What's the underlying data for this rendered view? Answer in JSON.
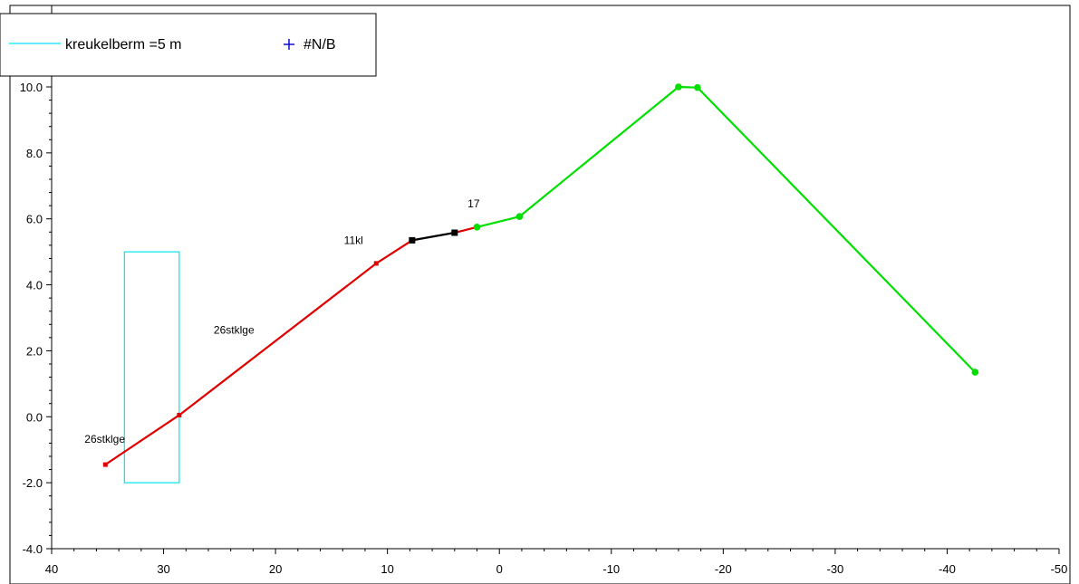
{
  "chart_data": {
    "type": "line",
    "title": "",
    "xlabel": "",
    "ylabel": "",
    "xlim": [
      40,
      -50
    ],
    "ylim": [
      -4,
      11
    ],
    "x_ticks": [
      "40",
      "30",
      "20",
      "10",
      "0",
      "-10",
      "-20",
      "-30",
      "-40",
      "-50"
    ],
    "y_ticks": [
      "-4.0",
      "-2.0",
      "0.0",
      "2.0",
      "4.0",
      "6.0",
      "8.0",
      "10.0"
    ],
    "x_tick_values": [
      40,
      30,
      20,
      10,
      0,
      -10,
      -20,
      -30,
      -40,
      -50
    ],
    "y_tick_values": [
      -4,
      -2,
      0,
      2,
      4,
      6,
      8,
      10
    ],
    "grid": false,
    "legend_position": "top-left",
    "legend": [
      {
        "label": "kreukelberm =5 m",
        "color": "#00e5ee",
        "marker": "line"
      },
      {
        "label": "#N/B",
        "color": "#0000cc",
        "marker": "plus"
      }
    ],
    "series": [
      {
        "color": "#e00000",
        "marker": "square-small",
        "points": [
          [
            35.2,
            -1.45
          ],
          [
            28.6,
            0.05
          ],
          [
            11.0,
            4.65
          ],
          [
            7.8,
            5.35
          ]
        ]
      },
      {
        "color": "#000000",
        "marker": "square",
        "points": [
          [
            7.8,
            5.35
          ],
          [
            4.0,
            5.58
          ]
        ]
      },
      {
        "color": "#e00000",
        "marker": "none",
        "points": [
          [
            4.0,
            5.58
          ],
          [
            2.0,
            5.75
          ]
        ]
      },
      {
        "color": "#00e000",
        "marker": "circle",
        "points": [
          [
            2.0,
            5.75
          ],
          [
            -1.8,
            6.07
          ],
          [
            -16.0,
            10.0
          ],
          [
            -17.7,
            9.98
          ],
          [
            -42.5,
            1.35
          ]
        ]
      }
    ],
    "rectangle": {
      "x": [
        33.5,
        28.6
      ],
      "y": [
        -2.0,
        5.0
      ],
      "color": "#00e5ee"
    },
    "annotations": [
      {
        "text": "26stklge",
        "x": 35.2,
        "y": -1.45
      },
      {
        "text": "26stklge",
        "x": 20.5,
        "y": 2.3
      },
      {
        "text": "11kl",
        "x": 10.0,
        "y": 5.35
      },
      {
        "text": "17",
        "x": 3.0,
        "y": 6.05
      }
    ]
  }
}
